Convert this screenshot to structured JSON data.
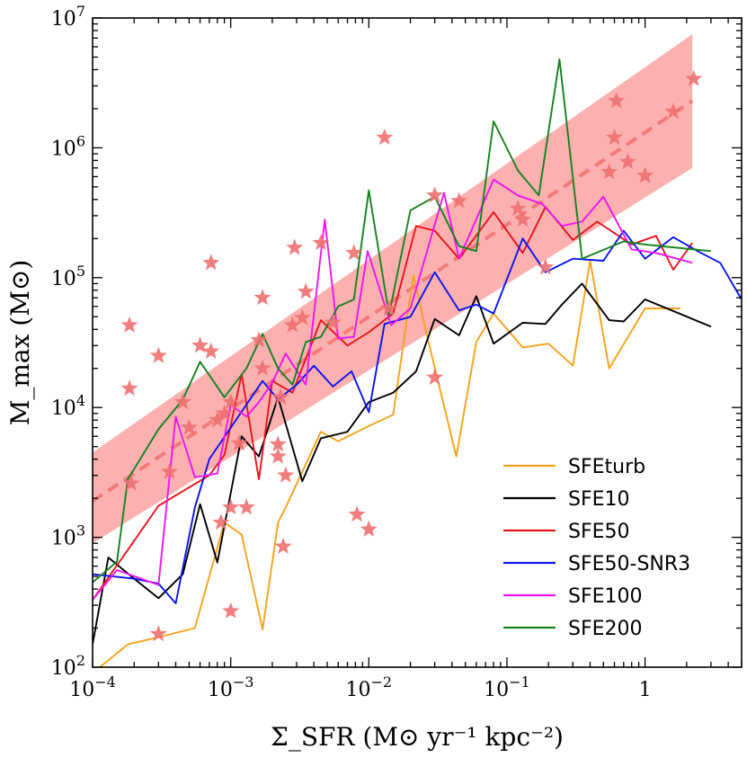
{
  "chart_data": {
    "type": "line",
    "title": "",
    "xlabel": "Σ_SFR (M⊙ yr⁻¹ kpc⁻²)",
    "ylabel": "M_max (M⊙)",
    "x_scale": "log",
    "y_scale": "log",
    "xlim": [
      0.0001,
      5
    ],
    "ylim": [
      100,
      10000000
    ],
    "grid": false,
    "legend_position": "lower-right",
    "x_ticks": [
      {
        "value": 0.0001,
        "base": "10",
        "exp": "−4"
      },
      {
        "value": 0.001,
        "base": "10",
        "exp": "−3"
      },
      {
        "value": 0.01,
        "base": "10",
        "exp": "−2"
      },
      {
        "value": 0.1,
        "base": "10",
        "exp": "−1"
      },
      {
        "value": 1,
        "base": "1",
        "exp": ""
      }
    ],
    "y_ticks": [
      {
        "value": 100,
        "base": "10",
        "exp": "2"
      },
      {
        "value": 1000,
        "base": "10",
        "exp": "3"
      },
      {
        "value": 10000,
        "base": "10",
        "exp": "4"
      },
      {
        "value": 100000,
        "base": "10",
        "exp": "5"
      },
      {
        "value": 1000000,
        "base": "10",
        "exp": "6"
      },
      {
        "value": 10000000,
        "base": "10",
        "exp": "7"
      }
    ],
    "fit_band": {
      "color": "#fa8080",
      "x_range": [
        0.0001,
        2.2
      ],
      "upper": [
        4500,
        7500000
      ],
      "lower": [
        900,
        700000
      ],
      "center": [
        1900,
        2300000
      ]
    },
    "observations": {
      "color": "#f07070",
      "points": [
        [
          0.000185,
          43000
        ],
        [
          0.000185,
          14000
        ],
        [
          0.00019,
          2600
        ],
        [
          0.0003,
          25000
        ],
        [
          0.0003,
          180
        ],
        [
          0.00036,
          3200
        ],
        [
          0.00045,
          11000
        ],
        [
          0.0005,
          7000
        ],
        [
          0.0006,
          30000
        ],
        [
          0.00072,
          27000
        ],
        [
          0.00072,
          130000
        ],
        [
          0.0008,
          8000
        ],
        [
          0.00085,
          1300
        ],
        [
          0.0009,
          9000
        ],
        [
          0.001,
          11000
        ],
        [
          0.001,
          270
        ],
        [
          0.001,
          1700
        ],
        [
          0.00115,
          5300
        ],
        [
          0.0013,
          1700
        ],
        [
          0.0016,
          33000
        ],
        [
          0.0017,
          20000
        ],
        [
          0.0017,
          70000
        ],
        [
          0.0022,
          5200
        ],
        [
          0.0022,
          4200
        ],
        [
          0.0023,
          12000
        ],
        [
          0.0024,
          850
        ],
        [
          0.0025,
          3000
        ],
        [
          0.0028,
          43000
        ],
        [
          0.0029,
          170000
        ],
        [
          0.0033,
          49000
        ],
        [
          0.0035,
          78000
        ],
        [
          0.0045,
          185000
        ],
        [
          0.0055,
          45000
        ],
        [
          0.0078,
          155000
        ],
        [
          0.0082,
          1500
        ],
        [
          0.01,
          1150
        ],
        [
          0.013,
          1200000
        ],
        [
          0.014,
          58000
        ],
        [
          0.03,
          17000
        ],
        [
          0.03,
          430000
        ],
        [
          0.045,
          390000
        ],
        [
          0.12,
          340000
        ],
        [
          0.13,
          280000
        ],
        [
          0.19,
          120000
        ],
        [
          0.55,
          650000
        ],
        [
          0.6,
          1200000
        ],
        [
          0.62,
          2300000
        ],
        [
          0.75,
          780000
        ],
        [
          1.0,
          610000
        ],
        [
          1.6,
          1900000
        ],
        [
          2.25,
          3400000
        ]
      ]
    },
    "series": [
      {
        "name": "SFEturb",
        "color": "#f5a21b",
        "points": [
          [
            0.0001,
            90
          ],
          [
            0.00018,
            150
          ],
          [
            0.0003,
            170
          ],
          [
            0.00055,
            200
          ],
          [
            0.0009,
            1300
          ],
          [
            0.0012,
            1050
          ],
          [
            0.0017,
            195
          ],
          [
            0.0022,
            1300
          ],
          [
            0.0025,
            1700
          ],
          [
            0.0045,
            6500
          ],
          [
            0.006,
            5500
          ],
          [
            0.01,
            7200
          ],
          [
            0.015,
            8800
          ],
          [
            0.021,
            105000
          ],
          [
            0.026,
            38000
          ],
          [
            0.043,
            4200
          ],
          [
            0.06,
            32000
          ],
          [
            0.08,
            53000
          ],
          [
            0.13,
            29000
          ],
          [
            0.2,
            31000
          ],
          [
            0.3,
            21000
          ],
          [
            0.4,
            135000
          ],
          [
            0.55,
            20000
          ],
          [
            1.0,
            58000
          ],
          [
            1.8,
            58000
          ]
        ]
      },
      {
        "name": "SFE10",
        "color": "#000000",
        "points": [
          [
            0.0001,
            150
          ],
          [
            0.00013,
            700
          ],
          [
            0.0002,
            480
          ],
          [
            0.0003,
            340
          ],
          [
            0.00045,
            520
          ],
          [
            0.0006,
            1800
          ],
          [
            0.0008,
            640
          ],
          [
            0.0012,
            6000
          ],
          [
            0.0016,
            4200
          ],
          [
            0.0022,
            12000
          ],
          [
            0.0033,
            2700
          ],
          [
            0.0045,
            5800
          ],
          [
            0.007,
            6500
          ],
          [
            0.01,
            11000
          ],
          [
            0.015,
            13000
          ],
          [
            0.022,
            19000
          ],
          [
            0.03,
            48000
          ],
          [
            0.045,
            36000
          ],
          [
            0.06,
            72000
          ],
          [
            0.08,
            31000
          ],
          [
            0.13,
            45000
          ],
          [
            0.19,
            44000
          ],
          [
            0.25,
            62000
          ],
          [
            0.35,
            90000
          ],
          [
            0.55,
            47000
          ],
          [
            0.7,
            46000
          ],
          [
            1.0,
            68000
          ],
          [
            3.0,
            42000
          ]
        ]
      },
      {
        "name": "SFE50",
        "color": "#e8141c",
        "points": [
          [
            0.0001,
            330
          ],
          [
            0.00018,
            800
          ],
          [
            0.0003,
            1750
          ],
          [
            0.0007,
            3000
          ],
          [
            0.0009,
            4300
          ],
          [
            0.0012,
            18000
          ],
          [
            0.0016,
            2800
          ],
          [
            0.002,
            16000
          ],
          [
            0.0028,
            13000
          ],
          [
            0.0045,
            47000
          ],
          [
            0.007,
            30000
          ],
          [
            0.01,
            38000
          ],
          [
            0.015,
            53000
          ],
          [
            0.022,
            250000
          ],
          [
            0.03,
            230000
          ],
          [
            0.045,
            140000
          ],
          [
            0.08,
            320000
          ],
          [
            0.13,
            155000
          ],
          [
            0.19,
            350000
          ],
          [
            0.3,
            195000
          ],
          [
            0.45,
            270000
          ],
          [
            0.8,
            180000
          ],
          [
            1.2,
            210000
          ],
          [
            1.6,
            115000
          ],
          [
            2.2,
            185000
          ]
        ]
      },
      {
        "name": "SFE50-SNR3",
        "color": "#0a14f0",
        "points": [
          [
            0.0001,
            520
          ],
          [
            0.0002,
            480
          ],
          [
            0.0003,
            440
          ],
          [
            0.0004,
            310
          ],
          [
            0.00055,
            1700
          ],
          [
            0.0007,
            4000
          ],
          [
            0.0012,
            9300
          ],
          [
            0.0017,
            16000
          ],
          [
            0.0022,
            11500
          ],
          [
            0.003,
            15000
          ],
          [
            0.004,
            21000
          ],
          [
            0.0055,
            14500
          ],
          [
            0.0075,
            19000
          ],
          [
            0.01,
            9200
          ],
          [
            0.013,
            44000
          ],
          [
            0.02,
            50000
          ],
          [
            0.03,
            110000
          ],
          [
            0.045,
            56000
          ],
          [
            0.06,
            62000
          ],
          [
            0.08,
            53000
          ],
          [
            0.13,
            200000
          ],
          [
            0.19,
            110000
          ],
          [
            0.3,
            140000
          ],
          [
            0.5,
            135000
          ],
          [
            0.7,
            230000
          ],
          [
            1.0,
            140000
          ],
          [
            1.6,
            205000
          ],
          [
            2.4,
            160000
          ],
          [
            3.5,
            130000
          ],
          [
            5.0,
            68000
          ]
        ]
      },
      {
        "name": "SFE100",
        "color": "#f014f0",
        "points": [
          [
            0.0001,
            330
          ],
          [
            0.00015,
            560
          ],
          [
            0.0003,
            430
          ],
          [
            0.0004,
            8500
          ],
          [
            0.00055,
            2900
          ],
          [
            0.0008,
            3100
          ],
          [
            0.001,
            10500
          ],
          [
            0.0013,
            8500
          ],
          [
            0.0016,
            11000
          ],
          [
            0.002,
            15500
          ],
          [
            0.0025,
            26000
          ],
          [
            0.0035,
            15000
          ],
          [
            0.0048,
            280000
          ],
          [
            0.006,
            34000
          ],
          [
            0.0078,
            35000
          ],
          [
            0.0098,
            160000
          ],
          [
            0.0145,
            43000
          ],
          [
            0.02,
            58000
          ],
          [
            0.035,
            450000
          ],
          [
            0.045,
            140000
          ],
          [
            0.08,
            570000
          ],
          [
            0.12,
            430000
          ],
          [
            0.18,
            370000
          ],
          [
            0.25,
            250000
          ],
          [
            0.35,
            270000
          ],
          [
            0.5,
            420000
          ],
          [
            0.8,
            165000
          ],
          [
            1.2,
            155000
          ],
          [
            2.2,
            130000
          ]
        ]
      },
      {
        "name": "SFE200",
        "color": "#15821e",
        "points": [
          [
            0.0001,
            450
          ],
          [
            0.00015,
            650
          ],
          [
            0.00018,
            2800
          ],
          [
            0.0003,
            6800
          ],
          [
            0.00045,
            11500
          ],
          [
            0.0006,
            22500
          ],
          [
            0.0009,
            12000
          ],
          [
            0.0013,
            20000
          ],
          [
            0.0017,
            37000
          ],
          [
            0.0022,
            20000
          ],
          [
            0.0028,
            15000
          ],
          [
            0.0035,
            32000
          ],
          [
            0.0045,
            35000
          ],
          [
            0.006,
            60000
          ],
          [
            0.0078,
            68000
          ],
          [
            0.01,
            470000
          ],
          [
            0.014,
            52000
          ],
          [
            0.02,
            330000
          ],
          [
            0.03,
            420000
          ],
          [
            0.045,
            175000
          ],
          [
            0.06,
            160000
          ],
          [
            0.08,
            1600000
          ],
          [
            0.12,
            670000
          ],
          [
            0.17,
            430000
          ],
          [
            0.24,
            4800000
          ],
          [
            0.35,
            140000
          ],
          [
            0.7,
            190000
          ],
          [
            1.0,
            180000
          ],
          [
            3.0,
            160000
          ]
        ]
      }
    ]
  }
}
